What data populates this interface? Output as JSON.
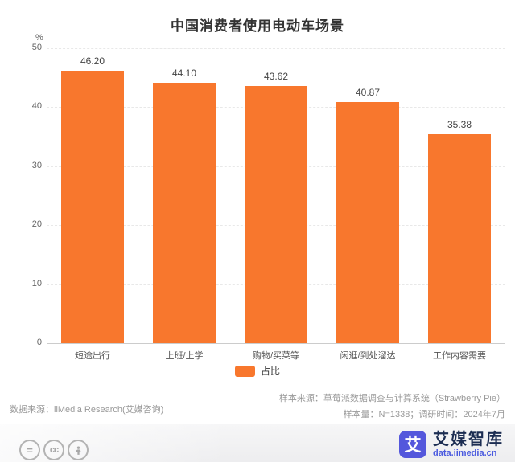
{
  "title": "中国消费者使用电动车场景",
  "chart_data": {
    "type": "bar",
    "title": "中国消费者使用电动车场景",
    "unit_label": "%",
    "categories": [
      "短途出行",
      "上班/上学",
      "购物/买菜等",
      "闲逛/到处溜达",
      "工作内容需要"
    ],
    "series": [
      {
        "name": "占比",
        "values": [
          46.2,
          44.1,
          43.62,
          40.87,
          35.38
        ],
        "labels": [
          "46.20",
          "44.10",
          "43.62",
          "40.87",
          "35.38"
        ],
        "color": "#F8772D"
      }
    ],
    "ylim": [
      0,
      50
    ],
    "yticks": [
      0,
      10,
      20,
      30,
      40,
      50
    ],
    "grid": "horizontal-dashed",
    "legend_position": "bottom"
  },
  "legend": {
    "label": "占比",
    "color": "#F8772D"
  },
  "footer": {
    "data_source": "数据来源：iiMedia Research(艾媒咨询)",
    "sample_source": "样本来源：草莓派数据调查与计算系统（Strawberry Pie）",
    "sample_info": "样本量：N=1338；调研时间：2024年7月"
  },
  "license": {
    "icons": [
      "equals-icon",
      "cc-icon",
      "attribution-person-icon"
    ]
  },
  "branding": {
    "logo_char": "艾",
    "name": "艾媒智库",
    "url": "data.iimedia.cn",
    "logo_color": "#5457DC",
    "name_color": "#1C2D52",
    "url_color": "#4A5ADF"
  }
}
